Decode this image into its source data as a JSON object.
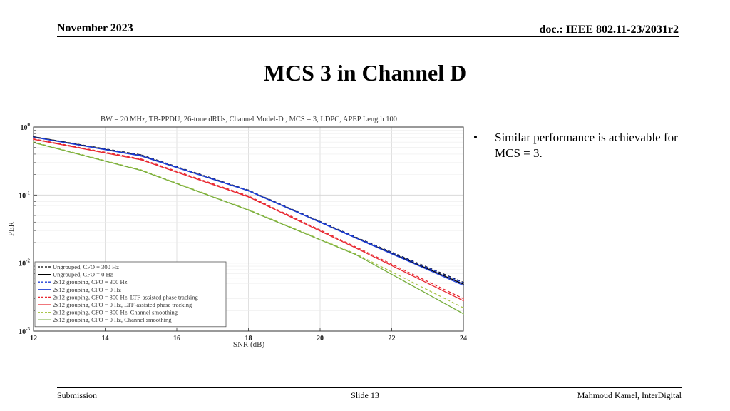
{
  "header": {
    "date": "November 2023",
    "doc": "doc.: IEEE 802.11-23/2031r2"
  },
  "slide_title": "MCS 3 in Channel D",
  "bullets": [
    {
      "marker": "•",
      "text": "Similar performance is achievable for MCS = 3."
    }
  ],
  "footer": {
    "left": "Submission",
    "center": "Slide 13",
    "right": "Mahmoud Kamel, InterDigital"
  },
  "chart_data": {
    "type": "line",
    "title": "BW = 20 MHz, TB-PPDU, 26-tone dRUs, Channel Model-D , MCS = 3, LDPC, APEP Length 100",
    "xlabel": "SNR (dB)",
    "ylabel": "PER",
    "xlim": [
      12,
      24
    ],
    "ylim": [
      0.001,
      1
    ],
    "yscale": "log",
    "grid": true,
    "legend_position": "lower-left",
    "x_ticks": [
      "12",
      "14",
      "16",
      "18",
      "20",
      "22",
      "24"
    ],
    "y_ticks": [
      {
        "value": 1,
        "base": "10",
        "exp": "0"
      },
      {
        "value": 0.1,
        "base": "10",
        "exp": "-1"
      },
      {
        "value": 0.01,
        "base": "10",
        "exp": "-2"
      },
      {
        "value": 0.001,
        "base": "10",
        "exp": "-3"
      }
    ],
    "x": [
      12,
      15,
      18,
      21,
      24
    ],
    "series": [
      {
        "name": "Ungrouped, CFO = 300 Hz",
        "color": "#000000",
        "dash": "dashed",
        "values": [
          0.72,
          0.39,
          0.118,
          0.024,
          0.0052
        ]
      },
      {
        "name": "Ungrouped, CFO = 0 Hz",
        "color": "#000000",
        "dash": "solid",
        "values": [
          0.72,
          0.38,
          0.116,
          0.0235,
          0.0049
        ]
      },
      {
        "name": "2x12 grouping, CFO = 300 Hz",
        "color": "#1f3fd6",
        "dash": "dashed",
        "values": [
          0.71,
          0.385,
          0.117,
          0.0238,
          0.0051
        ]
      },
      {
        "name": "2x12 grouping, CFO = 0 Hz",
        "color": "#1f3fd6",
        "dash": "solid",
        "values": [
          0.71,
          0.375,
          0.115,
          0.0232,
          0.0047
        ]
      },
      {
        "name": "2x12 grouping, CFO = 300 Hz, LTF-assisted phase tracking",
        "color": "#e8262f",
        "dash": "dashed",
        "values": [
          0.67,
          0.34,
          0.097,
          0.0172,
          0.003
        ]
      },
      {
        "name": "2x12 grouping, CFO = 0 Hz, LTF-assisted phase tracking",
        "color": "#e8262f",
        "dash": "solid",
        "values": [
          0.66,
          0.33,
          0.094,
          0.0166,
          0.0028
        ]
      },
      {
        "name": "2x12 grouping, CFO = 300 Hz, Channel smoothing",
        "color": "#a9c64a",
        "dash": "dashed",
        "values": [
          0.6,
          0.235,
          0.061,
          0.0136,
          0.0022
        ]
      },
      {
        "name": "2x12 grouping, CFO = 0 Hz, Channel smoothing",
        "color": "#76ad3c",
        "dash": "solid",
        "values": [
          0.59,
          0.23,
          0.06,
          0.0133,
          0.0018
        ]
      }
    ]
  }
}
